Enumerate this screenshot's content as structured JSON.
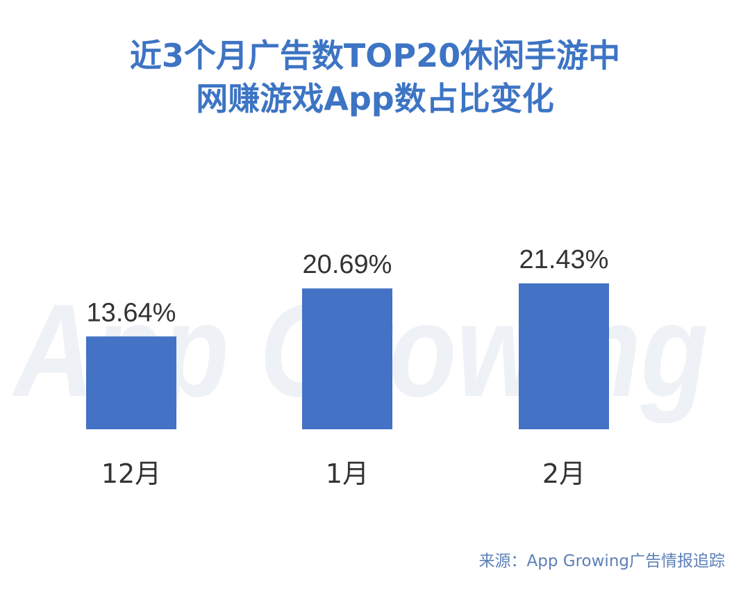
{
  "chart_data": {
    "type": "bar",
    "title": "近3个月广告数TOP20休闲手游中网赚游戏App数占比变化",
    "title_lines": [
      "近3个月广告数TOP20休闲手游中",
      "网赚游戏App数占比变化"
    ],
    "categories": [
      "12月",
      "1月",
      "2月"
    ],
    "values": [
      13.64,
      20.69,
      21.43
    ],
    "data_labels": [
      "13.64%",
      "20.69%",
      "21.43%"
    ],
    "unit": "%",
    "bar_color": "#4472c4",
    "title_color": "#3d74c4",
    "grid": false,
    "legend": "none"
  },
  "source": "来源：App Growing广告情报追踪",
  "watermark_text": "App Growing"
}
